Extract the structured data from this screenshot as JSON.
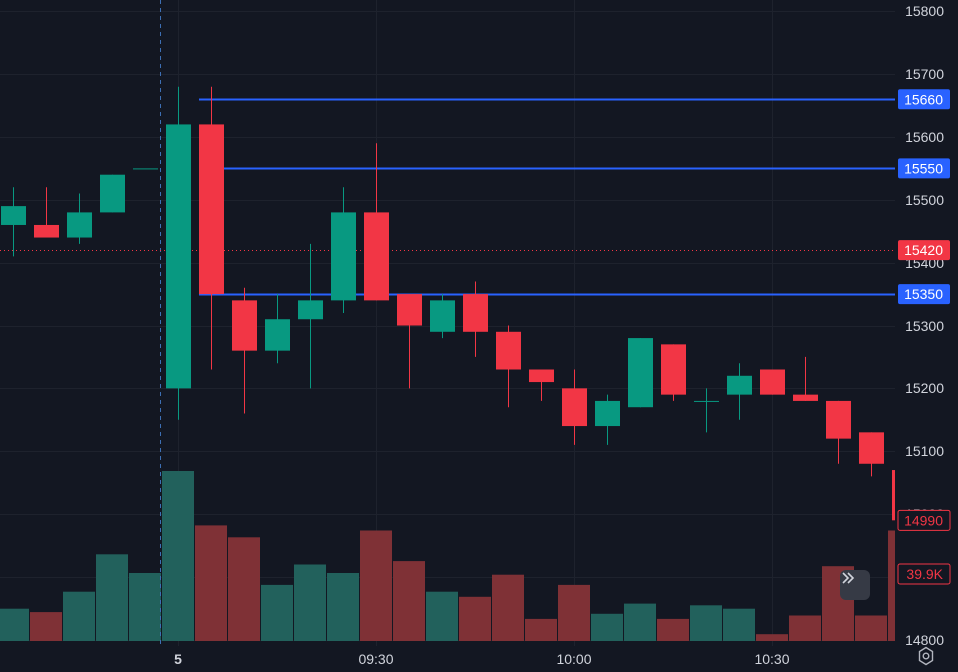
{
  "chart_data": {
    "type": "candlestick",
    "price_axis": {
      "ticks": [
        15800,
        15700,
        15600,
        15500,
        15400,
        15300,
        15200,
        15100,
        15000,
        14900,
        14800
      ],
      "range": [
        14790,
        15818
      ]
    },
    "time_axis": {
      "labels": [
        {
          "text": "5",
          "index": 5
        },
        {
          "text": "09:30",
          "index": 11
        },
        {
          "text": "10:00",
          "index": 17
        },
        {
          "text": "10:30",
          "index": 23
        }
      ]
    },
    "candles": [
      {
        "o": 15460,
        "h": 15520,
        "l": 15410,
        "c": 15490
      },
      {
        "o": 15460,
        "h": 15520,
        "l": 15440,
        "c": 15440
      },
      {
        "o": 15440,
        "h": 15510,
        "l": 15430,
        "c": 15480
      },
      {
        "o": 15480,
        "h": 15540,
        "l": 15480,
        "c": 15540
      },
      {
        "o": 15550,
        "h": 15550,
        "l": 15550,
        "c": 15550
      },
      {
        "o": 15200,
        "h": 15680,
        "l": 15150,
        "c": 15620
      },
      {
        "o": 15620,
        "h": 15680,
        "l": 15230,
        "c": 15350
      },
      {
        "o": 15340,
        "h": 15360,
        "l": 15160,
        "c": 15260
      },
      {
        "o": 15260,
        "h": 15350,
        "l": 15240,
        "c": 15310
      },
      {
        "o": 15310,
        "h": 15430,
        "l": 15200,
        "c": 15340
      },
      {
        "o": 15340,
        "h": 15520,
        "l": 15320,
        "c": 15480
      },
      {
        "o": 15480,
        "h": 15590,
        "l": 15340,
        "c": 15340
      },
      {
        "o": 15350,
        "h": 15350,
        "l": 15200,
        "c": 15300
      },
      {
        "o": 15290,
        "h": 15350,
        "l": 15280,
        "c": 15340
      },
      {
        "o": 15350,
        "h": 15370,
        "l": 15250,
        "c": 15290
      },
      {
        "o": 15290,
        "h": 15300,
        "l": 15170,
        "c": 15230
      },
      {
        "o": 15230,
        "h": 15230,
        "l": 15180,
        "c": 15210
      },
      {
        "o": 15200,
        "h": 15230,
        "l": 15110,
        "c": 15140
      },
      {
        "o": 15140,
        "h": 15190,
        "l": 15110,
        "c": 15180
      },
      {
        "o": 15170,
        "h": 15280,
        "l": 15170,
        "c": 15280
      },
      {
        "o": 15270,
        "h": 15270,
        "l": 15180,
        "c": 15190
      },
      {
        "o": 15180,
        "h": 15200,
        "l": 15130,
        "c": 15180
      },
      {
        "o": 15190,
        "h": 15240,
        "l": 15150,
        "c": 15220
      },
      {
        "o": 15230,
        "h": 15230,
        "l": 15190,
        "c": 15190
      },
      {
        "o": 15190,
        "h": 15250,
        "l": 15180,
        "c": 15180
      },
      {
        "o": 15180,
        "h": 15180,
        "l": 15080,
        "c": 15120
      },
      {
        "o": 15130,
        "h": 15130,
        "l": 15060,
        "c": 15080
      },
      {
        "o": 15070,
        "h": 15070,
        "l": 14990,
        "c": 14990
      }
    ],
    "volumes": [
      0.19,
      0.17,
      0.29,
      0.51,
      0.4,
      1.0,
      0.68,
      0.61,
      0.33,
      0.45,
      0.4,
      0.65,
      0.47,
      0.29,
      0.26,
      0.39,
      0.13,
      0.33,
      0.16,
      0.22,
      0.13,
      0.21,
      0.19,
      0.04,
      0.15,
      0.44,
      0.15,
      0.65
    ],
    "horizontal_lines": [
      {
        "price": 15660,
        "label": "15660",
        "start_index": 6
      },
      {
        "price": 15550,
        "label": "15550",
        "start_index": 6
      },
      {
        "price": 15350,
        "label": "15350",
        "start_index": 6
      }
    ],
    "current_price": {
      "value": 15420,
      "label": "15420"
    },
    "last_price_badge": {
      "value": 14990,
      "label": "14990"
    },
    "volume_badge": {
      "label": "39.9K"
    },
    "crosshair_index": 5,
    "grid": true
  },
  "colors": {
    "background": "#131722",
    "grid": "#1e222d",
    "up": "#089981",
    "down": "#f23645",
    "up_volume": "#22615c",
    "down_volume": "#7f3136",
    "line": "#2962ff",
    "axis_text": "#d1d4dc"
  },
  "controls": {
    "expand_icon": "double-chevron-right-icon",
    "settings_icon": "gear-icon"
  }
}
